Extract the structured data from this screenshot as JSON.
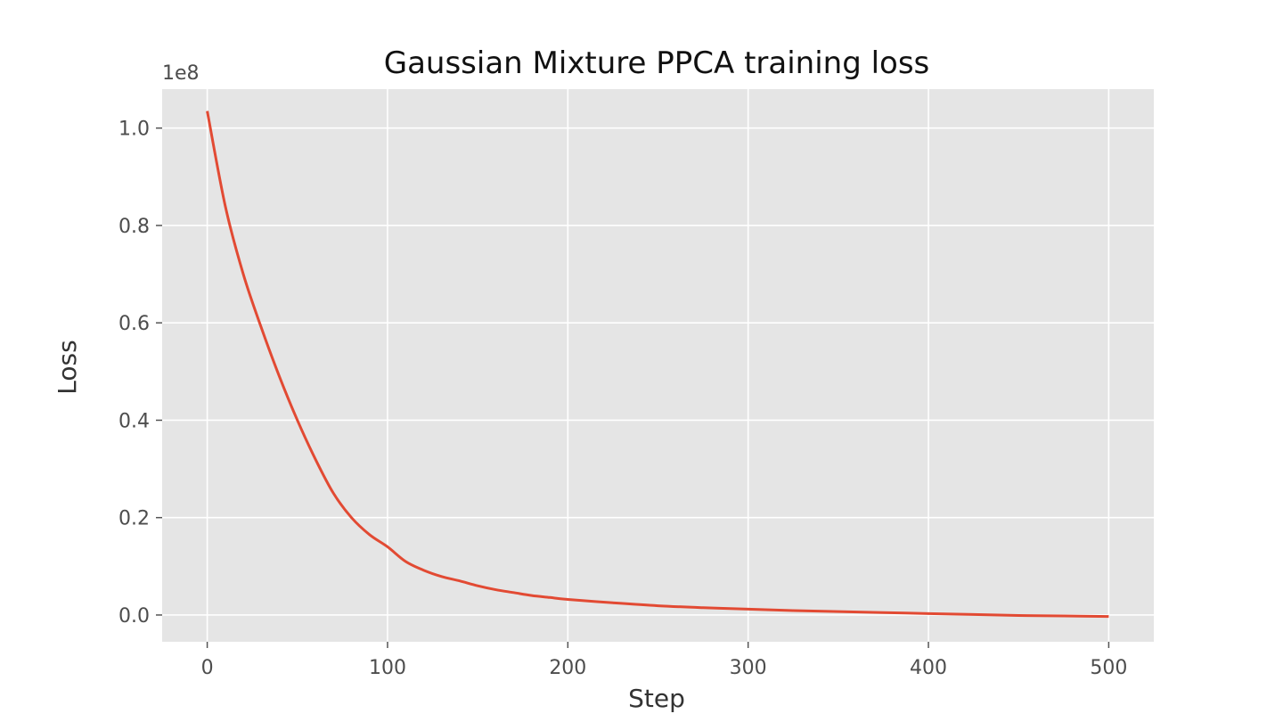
{
  "chart_data": {
    "type": "line",
    "title": "Gaussian Mixture PPCA training loss",
    "xlabel": "Step",
    "ylabel": "Loss",
    "y_offset_label": "1e8",
    "xlim": [
      -25,
      525
    ],
    "ylim": [
      -0.055,
      1.08
    ],
    "x_ticks": [
      0,
      100,
      200,
      300,
      400,
      500
    ],
    "x_tick_labels": [
      "0",
      "100",
      "200",
      "300",
      "400",
      "500"
    ],
    "y_ticks": [
      0.0,
      0.2,
      0.4,
      0.6,
      0.8,
      1.0
    ],
    "y_tick_labels": [
      "0.0",
      "0.2",
      "0.4",
      "0.6",
      "0.8",
      "1.0"
    ],
    "grid": true,
    "colors": {
      "line": "#e24a33",
      "plot_background": "#e5e5e5",
      "grid": "#ffffff"
    },
    "series": [
      {
        "x": [
          0,
          10,
          20,
          30,
          40,
          50,
          60,
          70,
          80,
          90,
          100,
          110,
          120,
          130,
          140,
          150,
          160,
          170,
          180,
          190,
          200,
          225,
          250,
          275,
          300,
          325,
          350,
          375,
          400,
          425,
          450,
          475,
          500
        ],
        "y": [
          1.035,
          0.84,
          0.7,
          0.59,
          0.49,
          0.4,
          0.32,
          0.25,
          0.2,
          0.165,
          0.14,
          0.11,
          0.092,
          0.079,
          0.07,
          0.06,
          0.052,
          0.046,
          0.04,
          0.036,
          0.032,
          0.025,
          0.019,
          0.015,
          0.012,
          0.009,
          0.007,
          0.005,
          0.003,
          0.001,
          -0.001,
          -0.002,
          -0.003
        ]
      }
    ]
  }
}
